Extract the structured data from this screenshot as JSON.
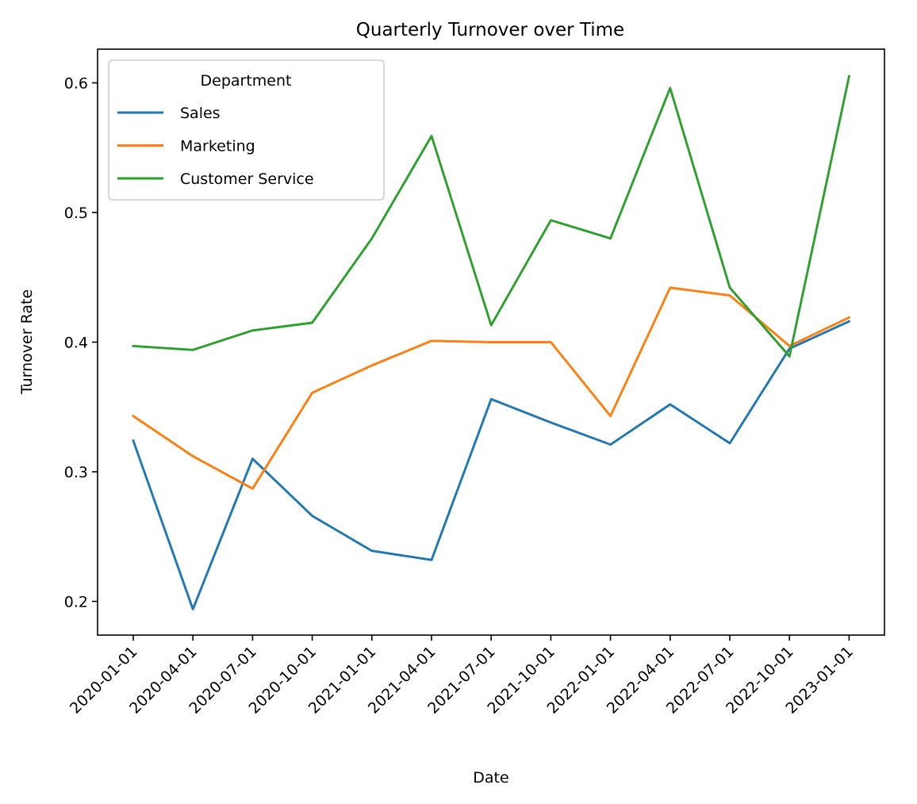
{
  "chart_data": {
    "type": "line",
    "title": "Quarterly Turnover over Time",
    "xlabel": "Date",
    "ylabel": "Turnover Rate",
    "x": [
      "2020-01-01",
      "2020-04-01",
      "2020-07-01",
      "2020-10-01",
      "2021-01-01",
      "2021-04-01",
      "2021-07-01",
      "2021-10-01",
      "2022-01-01",
      "2022-04-01",
      "2022-07-01",
      "2022-10-01",
      "2023-01-01"
    ],
    "ylim": [
      0.174,
      0.626
    ],
    "yticks": [
      0.2,
      0.3,
      0.4,
      0.5,
      0.6
    ],
    "ytick_labels": [
      "0.2",
      "0.3",
      "0.4",
      "0.5",
      "0.6"
    ],
    "grid": false,
    "legend": {
      "title": "Department",
      "placement": "upper-left"
    },
    "series": [
      {
        "name": "Sales",
        "color": "#1f77b4",
        "values": [
          0.324,
          0.194,
          0.31,
          0.266,
          0.239,
          0.232,
          0.356,
          0.338,
          0.321,
          0.352,
          0.322,
          0.395,
          0.416
        ]
      },
      {
        "name": "Marketing",
        "color": "#ff7f0e",
        "values": [
          0.343,
          0.312,
          0.287,
          0.361,
          0.382,
          0.401,
          0.4,
          0.4,
          0.343,
          0.442,
          0.436,
          0.397,
          0.419
        ]
      },
      {
        "name": "Customer Service",
        "color": "#2ca02c",
        "values": [
          0.397,
          0.394,
          0.409,
          0.415,
          0.48,
          0.559,
          0.413,
          0.494,
          0.48,
          0.596,
          0.442,
          0.389,
          0.605
        ]
      }
    ]
  }
}
